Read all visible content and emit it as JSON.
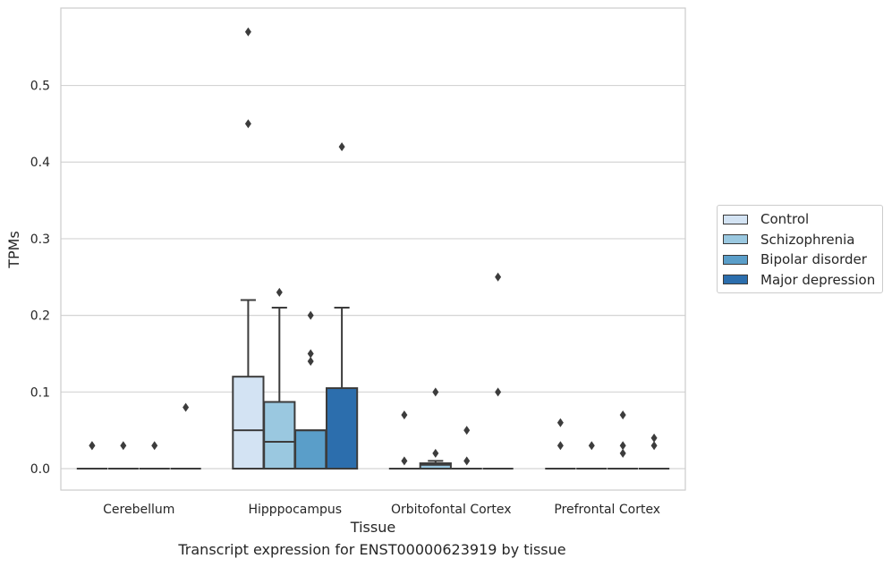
{
  "chart_data": {
    "type": "boxplot",
    "xlabel": "Tissue",
    "ylabel": "TPMs",
    "caption": "Transcript expression for ENST00000623919 by tissue",
    "ylim": [
      -0.028,
      0.601
    ],
    "yticks": [
      0.0,
      0.1,
      0.2,
      0.3,
      0.4,
      0.5
    ],
    "ytick_labels": [
      "0.0",
      "0.1",
      "0.2",
      "0.3",
      "0.4",
      "0.5"
    ],
    "grid": true,
    "legend_position": "right",
    "categories": [
      "Cerebellum",
      "Hipppocampus",
      "Orbitofontal Cortex",
      "Prefrontal Cortex"
    ],
    "series": [
      {
        "name": "Control",
        "color": "#d3e3f3",
        "boxes": [
          {
            "q1": 0.0,
            "median": 0.0,
            "q3": 0.0,
            "whislo": 0.0,
            "whishi": 0.0,
            "fliers": [
              0.03,
              0.03
            ]
          },
          {
            "q1": 0.0,
            "median": 0.05,
            "q3": 0.12,
            "whislo": 0.0,
            "whishi": 0.22,
            "fliers": [
              0.57,
              0.45
            ]
          },
          {
            "q1": 0.0,
            "median": 0.0,
            "q3": 0.0,
            "whislo": 0.0,
            "whishi": 0.0,
            "fliers": [
              0.07,
              0.01
            ]
          },
          {
            "q1": 0.0,
            "median": 0.0,
            "q3": 0.0,
            "whislo": 0.0,
            "whishi": 0.0,
            "fliers": [
              0.06,
              0.03
            ]
          }
        ]
      },
      {
        "name": "Schizophrenia",
        "color": "#9ac8e0",
        "boxes": [
          {
            "q1": 0.0,
            "median": 0.0,
            "q3": 0.0,
            "whislo": 0.0,
            "whishi": 0.0,
            "fliers": [
              0.03
            ]
          },
          {
            "q1": 0.0,
            "median": 0.035,
            "q3": 0.087,
            "whislo": 0.0,
            "whishi": 0.21,
            "fliers": [
              0.23
            ]
          },
          {
            "q1": 0.0,
            "median": 0.005,
            "q3": 0.007,
            "whislo": 0.0,
            "whishi": 0.01,
            "fliers": [
              0.1,
              0.02
            ]
          },
          {
            "q1": 0.0,
            "median": 0.0,
            "q3": 0.0,
            "whislo": 0.0,
            "whishi": 0.0,
            "fliers": [
              0.03
            ]
          }
        ]
      },
      {
        "name": "Bipolar disorder",
        "color": "#5a9ec9",
        "boxes": [
          {
            "q1": 0.0,
            "median": 0.0,
            "q3": 0.0,
            "whislo": 0.0,
            "whishi": 0.0,
            "fliers": [
              0.03
            ]
          },
          {
            "q1": 0.0,
            "median": 0.05,
            "q3": 0.05,
            "whislo": 0.0,
            "whishi": 0.05,
            "fliers": [
              0.2,
              0.15,
              0.14
            ]
          },
          {
            "q1": 0.0,
            "median": 0.0,
            "q3": 0.0,
            "whislo": 0.0,
            "whishi": 0.0,
            "fliers": [
              0.05,
              0.01
            ]
          },
          {
            "q1": 0.0,
            "median": 0.0,
            "q3": 0.0,
            "whislo": 0.0,
            "whishi": 0.0,
            "fliers": [
              0.07,
              0.03,
              0.02
            ]
          }
        ]
      },
      {
        "name": "Major depression",
        "color": "#2c6ead",
        "boxes": [
          {
            "q1": 0.0,
            "median": 0.0,
            "q3": 0.0,
            "whislo": 0.0,
            "whishi": 0.0,
            "fliers": [
              0.08
            ]
          },
          {
            "q1": 0.0,
            "median": 0.0,
            "q3": 0.105,
            "whislo": 0.0,
            "whishi": 0.21,
            "fliers": [
              0.42
            ]
          },
          {
            "q1": 0.0,
            "median": 0.0,
            "q3": 0.0,
            "whislo": 0.0,
            "whishi": 0.0,
            "fliers": [
              0.25,
              0.1
            ]
          },
          {
            "q1": 0.0,
            "median": 0.0,
            "q3": 0.0,
            "whislo": 0.0,
            "whishi": 0.0,
            "fliers": [
              0.04,
              0.03
            ]
          }
        ]
      }
    ]
  }
}
